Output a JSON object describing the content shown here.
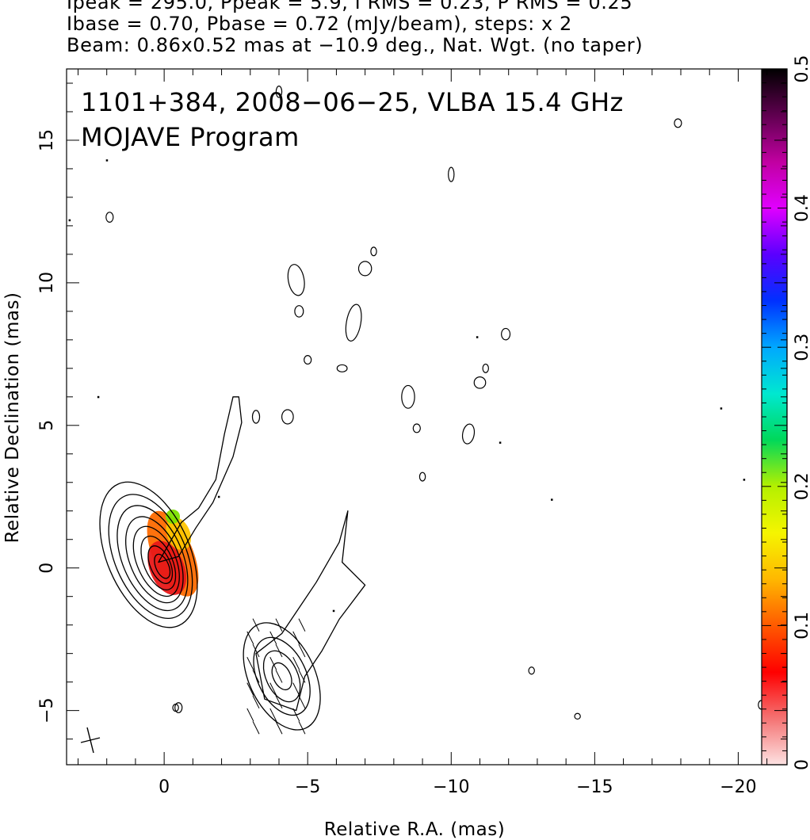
{
  "header": {
    "line1": "Ipeak = 295.0, Ppeak = 5.9, I RMS = 0.23, P RMS = 0.25",
    "line2": "Ibase = 0.70, Pbase = 0.72 (mJy/beam), steps: x 2",
    "line3": "Beam: 0.86x0.52 mas at −10.9 deg., Nat. Wgt. (no taper)"
  },
  "annotations": {
    "source_line": "1101+384, 2008−06−25, VLBA 15.4 GHz",
    "program_line": "MOJAVE Program"
  },
  "chart_data": {
    "type": "contour",
    "xlabel": "Relative R.A. (mas)",
    "ylabel": "Relative Declination (mas)",
    "xlim": [
      3.4,
      -21.7
    ],
    "ylim": [
      -6.9,
      17.5
    ],
    "x_ticks": [
      0,
      -5,
      -10,
      -15,
      -20
    ],
    "x_tick_labels": [
      "0",
      "−5",
      "−10",
      "−15",
      "−20"
    ],
    "y_ticks": [
      -5,
      0,
      5,
      10,
      15
    ],
    "y_tick_labels": [
      "−5",
      "0",
      "5",
      "10",
      "15"
    ],
    "grid": false,
    "beam": {
      "major_mas": 0.86,
      "minor_mas": 0.52,
      "pa_deg": -10.9,
      "position": "bottom-left"
    },
    "colorbar": {
      "label_ticks": [
        0,
        0.1,
        0.2,
        0.3,
        0.4,
        0.5
      ],
      "min": 0,
      "max": 0.5,
      "colors": [
        "#fde2e2",
        "#f47272",
        "#ff0000",
        "#ff5a00",
        "#ffb800",
        "#f5f500",
        "#b4f000",
        "#00d85a",
        "#00e8d0",
        "#00a8ff",
        "#0030ff",
        "#5a00ff",
        "#e000ff",
        "#c000a0",
        "#600050",
        "#000000"
      ]
    },
    "core": {
      "position": [
        0,
        0
      ],
      "contour_widths_mas": [
        2.9,
        2.5,
        2.1,
        1.7,
        1.35,
        1.0,
        0.7,
        0.45
      ],
      "contour_heights_mas": [
        5.4,
        4.6,
        3.9,
        3.2,
        2.6,
        2.0,
        1.4,
        0.9
      ],
      "pa_deg": -23,
      "polarization_fill": [
        {
          "offset": [
            -0.3,
            0.5
          ],
          "w": 1.4,
          "h": 3.2,
          "color": "#ff6a00"
        },
        {
          "offset": [
            -0.1,
            0.0
          ],
          "w": 1.2,
          "h": 2.0,
          "color": "#e81818"
        },
        {
          "offset": [
            -0.5,
            1.2
          ],
          "w": 0.8,
          "h": 1.2,
          "color": "#ffc400"
        },
        {
          "offset": [
            -0.3,
            1.8
          ],
          "w": 0.5,
          "h": 0.5,
          "color": "#7ce000"
        }
      ]
    },
    "jet_outline": [
      [
        -2.4,
        6.0
      ],
      [
        -2.1,
        4.7
      ],
      [
        -1.8,
        3.1
      ],
      [
        -1.2,
        2.1
      ],
      [
        -0.6,
        1.6
      ],
      [
        0.2,
        0.2
      ],
      [
        -0.5,
        0.4
      ],
      [
        -1.1,
        1.4
      ],
      [
        -1.7,
        2.3
      ],
      [
        -2.4,
        3.9
      ],
      [
        -2.7,
        5.1
      ],
      [
        -2.6,
        6.0
      ]
    ],
    "lower_outer": [
      [
        -6.4,
        2.0
      ],
      [
        -6.2,
        0.2
      ],
      [
        -7.0,
        -0.6
      ],
      [
        -6.1,
        -1.8
      ],
      [
        -5.5,
        -2.9
      ],
      [
        -4.9,
        -3.8
      ],
      [
        -4.6,
        -5.0
      ],
      [
        -3.5,
        -4.6
      ],
      [
        -3.2,
        -3.0
      ],
      [
        -4.1,
        -2.3
      ],
      [
        -5.3,
        -0.5
      ],
      [
        -6.1,
        0.9
      ]
    ],
    "lower_inner_sizes_mas": [
      [
        2.3,
        4.0
      ],
      [
        1.7,
        2.9
      ],
      [
        1.1,
        1.9
      ],
      [
        0.6,
        1.0
      ]
    ],
    "lower_center": [
      -4.1,
      -3.8
    ],
    "blobs": [
      [
        -4.6,
        10.1,
        0.55,
        1.1,
        -10
      ],
      [
        -4.7,
        9.0,
        0.3,
        0.4,
        0
      ],
      [
        -6.6,
        8.6,
        0.5,
        1.3,
        10
      ],
      [
        -6.2,
        7.0,
        0.35,
        0.25,
        0
      ],
      [
        -7.0,
        10.5,
        0.45,
        0.5,
        0
      ],
      [
        -7.3,
        11.1,
        0.2,
        0.3,
        0
      ],
      [
        -5.0,
        7.3,
        0.25,
        0.3,
        0
      ],
      [
        -4.3,
        5.3,
        0.4,
        0.5,
        0
      ],
      [
        -3.2,
        5.3,
        0.25,
        0.45,
        0
      ],
      [
        -8.5,
        6.0,
        0.45,
        0.8,
        0
      ],
      [
        -8.8,
        4.9,
        0.25,
        0.3,
        0
      ],
      [
        -9.0,
        3.2,
        0.2,
        0.3,
        0
      ],
      [
        -10.0,
        13.8,
        0.2,
        0.5,
        0
      ],
      [
        -10.6,
        4.7,
        0.4,
        0.7,
        10
      ],
      [
        -11.0,
        6.5,
        0.4,
        0.4,
        0
      ],
      [
        -11.2,
        7.0,
        0.2,
        0.3,
        0
      ],
      [
        -11.9,
        8.2,
        0.3,
        0.4,
        0
      ],
      [
        -12.8,
        -3.6,
        0.2,
        0.25,
        0
      ],
      [
        -14.4,
        -5.2,
        0.2,
        0.2,
        0
      ],
      [
        -17.9,
        15.6,
        0.25,
        0.3,
        0
      ],
      [
        1.9,
        12.3,
        0.25,
        0.35,
        0
      ],
      [
        -4.0,
        16.7,
        0.2,
        0.4,
        0
      ],
      [
        -0.5,
        -4.9,
        0.25,
        0.35,
        0
      ],
      [
        -20.8,
        -4.8,
        0.2,
        0.3,
        0
      ],
      [
        -0.4,
        -4.9,
        0.2,
        0.25,
        0
      ]
    ],
    "specks": [
      [
        2.3,
        6.0
      ],
      [
        2.0,
        14.3
      ],
      [
        -11.7,
        4.4
      ],
      [
        -10.9,
        8.1
      ],
      [
        -13.5,
        2.4
      ],
      [
        -19.4,
        5.6
      ],
      [
        -20.2,
        3.1
      ],
      [
        3.3,
        12.2
      ],
      [
        -5.9,
        -1.5
      ],
      [
        -1.9,
        2.5
      ]
    ]
  }
}
